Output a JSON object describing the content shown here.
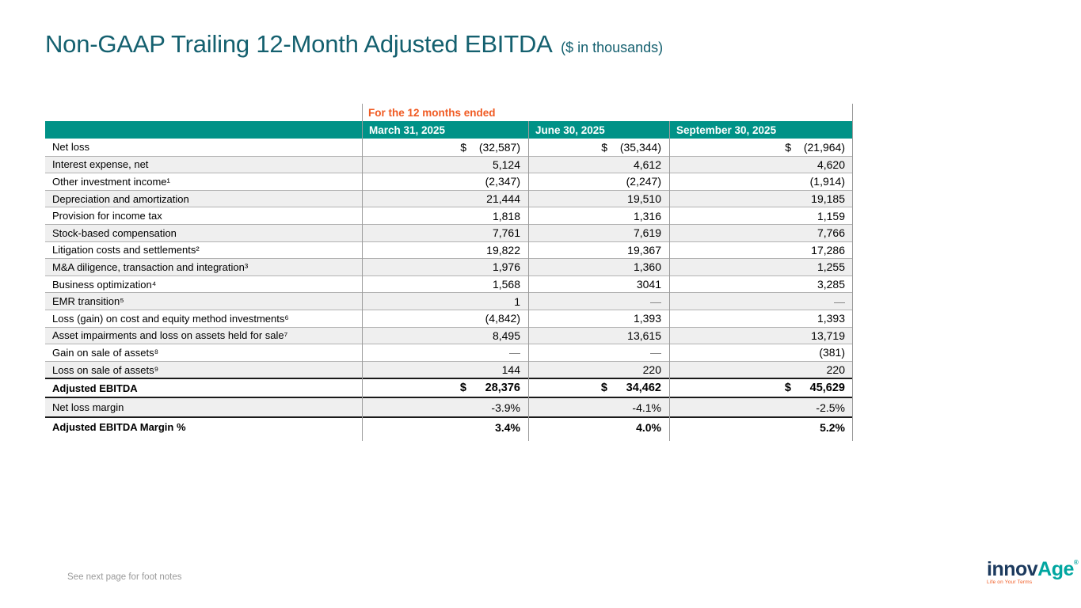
{
  "slide": {
    "title": "Non-GAAP Trailing 12-Month Adjusted EBITDA",
    "title_suffix": "($ in thousands)",
    "footnote": "See next page for foot notes"
  },
  "table": {
    "period_header": "For the 12 months ended",
    "columns": [
      "March 31, 2025",
      "June 30, 2025",
      "September 30, 2025"
    ],
    "rows": [
      {
        "label": "Net loss",
        "kind": "normal",
        "currency": [
          "$",
          "$",
          "$"
        ],
        "values": [
          "(32,587)",
          "(35,344)",
          "(21,964)"
        ]
      },
      {
        "label": "Interest expense, net",
        "kind": "normal",
        "values": [
          "5,124",
          "4,612",
          "4,620"
        ]
      },
      {
        "label": "Other investment income¹",
        "kind": "normal",
        "values": [
          "(2,347)",
          "(2,247)",
          "(1,914)"
        ]
      },
      {
        "label": "Depreciation and amortization",
        "kind": "normal",
        "values": [
          "21,444",
          "19,510",
          "19,185"
        ]
      },
      {
        "label": "Provision for income tax",
        "kind": "normal",
        "values": [
          "1,818",
          "1,316",
          "1,159"
        ]
      },
      {
        "label": "Stock-based compensation",
        "kind": "normal",
        "values": [
          "7,761",
          "7,619",
          "7,766"
        ]
      },
      {
        "label": "Litigation costs and settlements²",
        "kind": "normal",
        "values": [
          "19,822",
          "19,367",
          "17,286"
        ]
      },
      {
        "label": "M&A diligence, transaction and integration³",
        "kind": "normal",
        "values": [
          "1,976",
          "1,360",
          "1,255"
        ]
      },
      {
        "label": "Business optimization⁴",
        "kind": "normal",
        "values": [
          "1,568",
          "3041",
          "3,285"
        ]
      },
      {
        "label": "EMR transition⁵",
        "kind": "normal",
        "values": [
          "1",
          "—",
          "—"
        ]
      },
      {
        "label": "Loss (gain) on cost and equity method investments⁶",
        "kind": "normal",
        "values": [
          "(4,842)",
          "1,393",
          "1,393"
        ]
      },
      {
        "label": "Asset impairments and loss on assets held for sale⁷",
        "kind": "normal",
        "values": [
          "8,495",
          "13,615",
          "13,719"
        ]
      },
      {
        "label": "Gain on sale of assets⁸",
        "kind": "normal",
        "values": [
          "—",
          "—",
          "(381)"
        ]
      },
      {
        "label": "Loss on sale of assets⁹",
        "kind": "normal",
        "values": [
          "144",
          "220",
          "220"
        ]
      },
      {
        "label": "Adjusted EBITDA",
        "kind": "total",
        "currency": [
          "$",
          "$",
          "$"
        ],
        "values": [
          "28,376",
          "34,462",
          "45,629"
        ]
      },
      {
        "label": "Net loss margin",
        "kind": "margin",
        "values": [
          "-3.9%",
          "-4.1%",
          "-2.5%"
        ]
      },
      {
        "label": "Adjusted EBITDA Margin %",
        "kind": "margin-total",
        "values": [
          "3.4%",
          "4.0%",
          "5.2%"
        ]
      }
    ]
  },
  "logo": {
    "word_primary": "innov",
    "word_secondary": "Age",
    "registered": "®",
    "tagline": "Life on Your Terms"
  },
  "colors": {
    "title": "#14606F",
    "header_bg": "#009287",
    "accent_orange": "#F05A22",
    "row_alt": "#EFEFEF",
    "logo_navy": "#1C3A5E",
    "logo_teal": "#00A6A0"
  }
}
